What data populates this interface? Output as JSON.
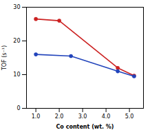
{
  "chart_data": {
    "type": "line",
    "xlabel": "Co content (wt. %)",
    "ylabel": "TOF (s⁻¹)",
    "series": [
      {
        "color": "#cc2222",
        "marker": "circle",
        "x": [
          1.0,
          2.0,
          4.5,
          5.2
        ],
        "values": [
          26.5,
          26.0,
          12.0,
          9.7
        ]
      },
      {
        "color": "#2244bb",
        "marker": "circle",
        "x": [
          1.0,
          2.5,
          4.5,
          5.2
        ],
        "values": [
          16.0,
          15.5,
          11.0,
          9.5
        ]
      }
    ],
    "xlim": [
      0.6,
      5.6
    ],
    "ylim": [
      0,
      30
    ],
    "xticks": [
      1,
      2,
      3,
      4,
      5
    ],
    "yticks": [
      0,
      10,
      20,
      30
    ]
  }
}
